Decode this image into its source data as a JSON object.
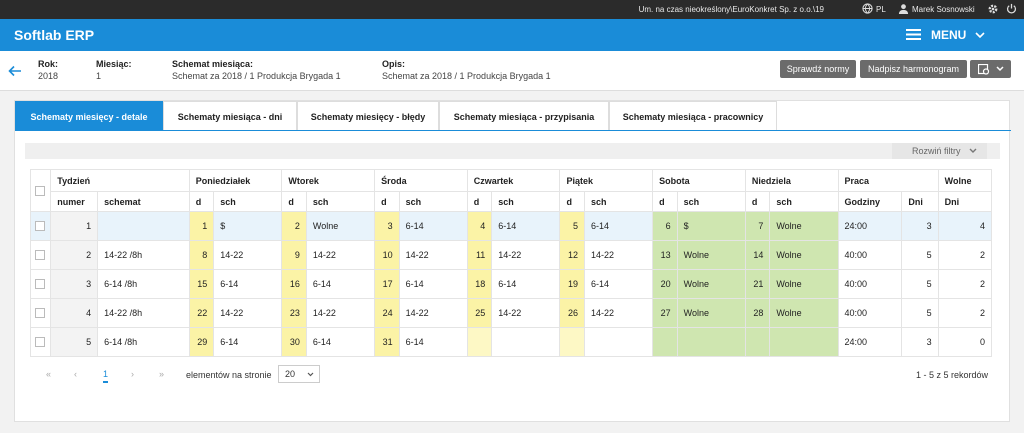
{
  "topbar": {
    "company": "Um. na czas nieokreślony\\EuroKonkret Sp. z o.o.\\19",
    "lang": "PL",
    "user": "Marek Sosnowski"
  },
  "app": {
    "title": "Softlab ERP",
    "menu": "MENU"
  },
  "info": {
    "rok_label": "Rok:",
    "rok": "2018",
    "miesiac_label": "Miesiąc:",
    "miesiac": "1",
    "schemat_label": "Schemat miesiąca:",
    "schemat": "Schemat za 2018 / 1 Produkcja Brygada 1",
    "opis_label": "Opis:",
    "opis": "Schemat za 2018 / 1 Produkcja Brygada 1",
    "btn_sprawdz": "Sprawdź normy",
    "btn_nadpisz": "Nadpisz harmonogram"
  },
  "tabs": [
    "Schematy miesięcy - detale",
    "Schematy miesiąca - dni",
    "Schematy miesięcy - błędy",
    "Schematy miesiąca - przypisania",
    "Schematy miesiąca - pracownicy"
  ],
  "filters": "Rozwiń filtry",
  "headers": {
    "tydzien": "Tydzień",
    "numer": "numer",
    "schemat": "schemat",
    "pon": "Poniedziałek",
    "wt": "Wtorek",
    "sr": "Środa",
    "czw": "Czwartek",
    "pt": "Piątek",
    "sob": "Sobota",
    "nd": "Niedziela",
    "d": "d",
    "sch": "sch",
    "praca": "Praca",
    "godziny": "Godziny",
    "dni": "Dni",
    "wolne": "Wolne",
    "wolne_dni": "Dni"
  },
  "rows": [
    {
      "numer": "1",
      "schemat": "",
      "pon_d": "1",
      "pon_s": "$",
      "wt_d": "2",
      "wt_s": "Wolne",
      "sr_d": "3",
      "sr_s": "6-14",
      "cz_d": "4",
      "cz_s": "6-14",
      "pt_d": "5",
      "pt_s": "6-14",
      "so_d": "6",
      "so_s": "$",
      "nd_d": "7",
      "nd_s": "Wolne",
      "godz": "24:00",
      "dni": "3",
      "wolne": "4"
    },
    {
      "numer": "2",
      "schemat": "14-22 /8h",
      "pon_d": "8",
      "pon_s": "14-22",
      "wt_d": "9",
      "wt_s": "14-22",
      "sr_d": "10",
      "sr_s": "14-22",
      "cz_d": "11",
      "cz_s": "14-22",
      "pt_d": "12",
      "pt_s": "14-22",
      "so_d": "13",
      "so_s": "Wolne",
      "nd_d": "14",
      "nd_s": "Wolne",
      "godz": "40:00",
      "dni": "5",
      "wolne": "2"
    },
    {
      "numer": "3",
      "schemat": "6-14 /8h",
      "pon_d": "15",
      "pon_s": "6-14",
      "wt_d": "16",
      "wt_s": "6-14",
      "sr_d": "17",
      "sr_s": "6-14",
      "cz_d": "18",
      "cz_s": "6-14",
      "pt_d": "19",
      "pt_s": "6-14",
      "so_d": "20",
      "so_s": "Wolne",
      "nd_d": "21",
      "nd_s": "Wolne",
      "godz": "40:00",
      "dni": "5",
      "wolne": "2"
    },
    {
      "numer": "4",
      "schemat": "14-22 /8h",
      "pon_d": "22",
      "pon_s": "14-22",
      "wt_d": "23",
      "wt_s": "14-22",
      "sr_d": "24",
      "sr_s": "14-22",
      "cz_d": "25",
      "cz_s": "14-22",
      "pt_d": "26",
      "pt_s": "14-22",
      "so_d": "27",
      "so_s": "Wolne",
      "nd_d": "28",
      "nd_s": "Wolne",
      "godz": "40:00",
      "dni": "5",
      "wolne": "2"
    },
    {
      "numer": "5",
      "schemat": "6-14 /8h",
      "pon_d": "29",
      "pon_s": "6-14",
      "wt_d": "30",
      "wt_s": "6-14",
      "sr_d": "31",
      "sr_s": "6-14",
      "cz_d": "",
      "cz_s": "",
      "pt_d": "",
      "pt_s": "",
      "so_d": "",
      "so_s": "",
      "nd_d": "",
      "nd_s": "",
      "godz": "24:00",
      "dni": "3",
      "wolne": "0"
    }
  ],
  "pager": {
    "first": "«",
    "prev": "‹",
    "current": "1",
    "next": "›",
    "last": "»",
    "label": "elementów na stronie",
    "size": "20",
    "records": "1 - 5 z 5 rekordów"
  }
}
